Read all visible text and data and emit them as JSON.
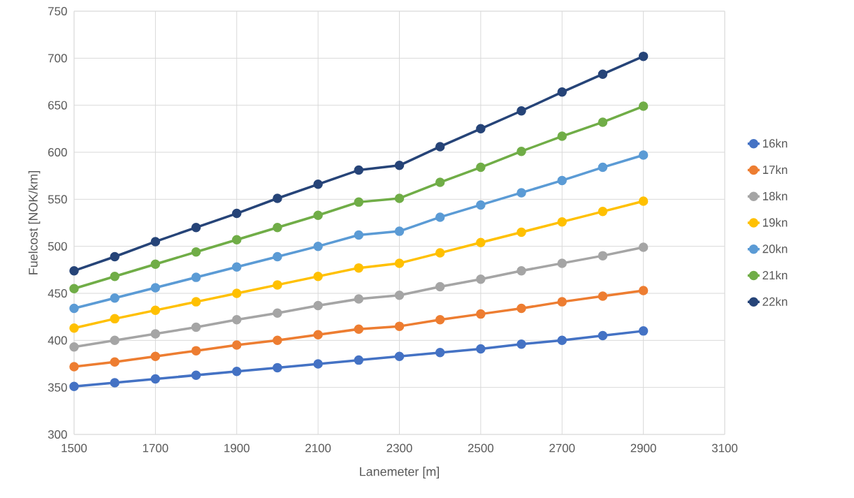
{
  "chart_data": {
    "type": "line",
    "xlabel": "Lanemeter [m]",
    "ylabel": "Fuelcost [NOK/km]",
    "x": [
      1500,
      1600,
      1700,
      1800,
      1900,
      2000,
      2100,
      2200,
      2300,
      2400,
      2500,
      2600,
      2700,
      2800,
      2900
    ],
    "series": [
      {
        "name": "16kn",
        "color": "#4472c4",
        "values": [
          351,
          355,
          359,
          363,
          367,
          371,
          375,
          379,
          383,
          387,
          391,
          396,
          400,
          405,
          410
        ]
      },
      {
        "name": "17kn",
        "color": "#ed7d31",
        "values": [
          372,
          377,
          383,
          389,
          395,
          400,
          406,
          412,
          415,
          422,
          428,
          434,
          441,
          447,
          453
        ]
      },
      {
        "name": "18kn",
        "color": "#a5a5a5",
        "values": [
          393,
          400,
          407,
          414,
          422,
          429,
          437,
          444,
          448,
          457,
          465,
          474,
          482,
          490,
          499
        ]
      },
      {
        "name": "19kn",
        "color": "#ffc000",
        "values": [
          413,
          423,
          432,
          441,
          450,
          459,
          468,
          477,
          482,
          493,
          504,
          515,
          526,
          537,
          548
        ]
      },
      {
        "name": "20kn",
        "color": "#5b9bd5",
        "values": [
          434,
          445,
          456,
          467,
          478,
          489,
          500,
          512,
          516,
          531,
          544,
          557,
          570,
          584,
          597
        ]
      },
      {
        "name": "21kn",
        "color": "#70ad47",
        "values": [
          455,
          468,
          481,
          494,
          507,
          520,
          533,
          547,
          551,
          568,
          584,
          601,
          617,
          632,
          649
        ]
      },
      {
        "name": "22kn",
        "color": "#264478",
        "values": [
          474,
          489,
          505,
          520,
          535,
          551,
          566,
          581,
          586,
          606,
          625,
          644,
          664,
          683,
          702
        ]
      }
    ],
    "xlim": [
      1500,
      3100
    ],
    "xticks": [
      1500,
      1700,
      1900,
      2100,
      2300,
      2500,
      2700,
      2900,
      3100
    ],
    "ylim": [
      300,
      750
    ],
    "yticks": [
      300,
      350,
      400,
      450,
      500,
      550,
      600,
      650,
      700,
      750
    ],
    "grid": true,
    "legend": "right",
    "marker": "circle",
    "line_style": "solid"
  }
}
